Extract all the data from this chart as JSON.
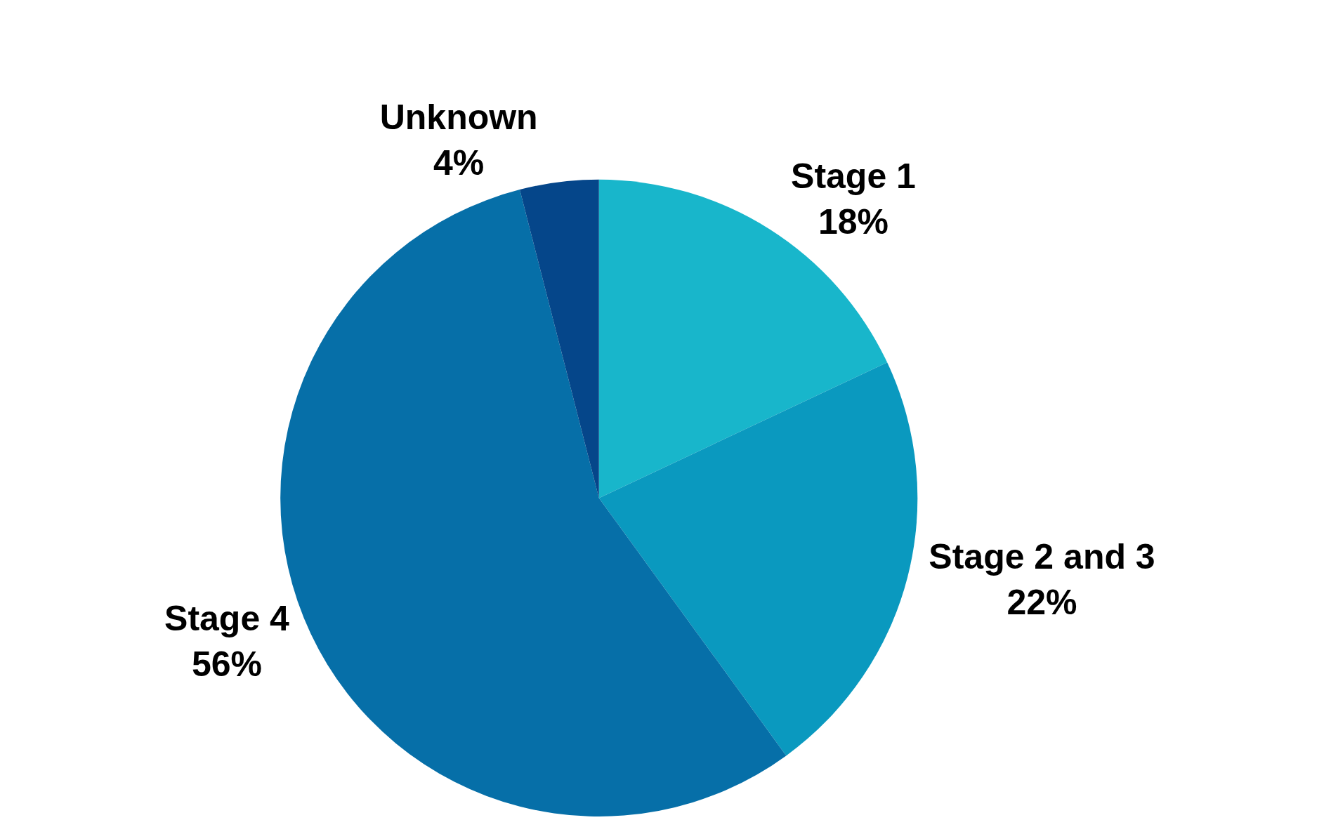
{
  "chart_data": {
    "type": "pie",
    "categories": [
      "Stage 1",
      "Stage 2 and 3",
      "Stage 4",
      "Unknown"
    ],
    "values": [
      18,
      22,
      56,
      4
    ],
    "value_labels": [
      "18%",
      "22%",
      "56%",
      "4%"
    ],
    "colors": [
      "#18b6cb",
      "#0a99bf",
      "#066fa8",
      "#05468a"
    ],
    "legend": false
  }
}
